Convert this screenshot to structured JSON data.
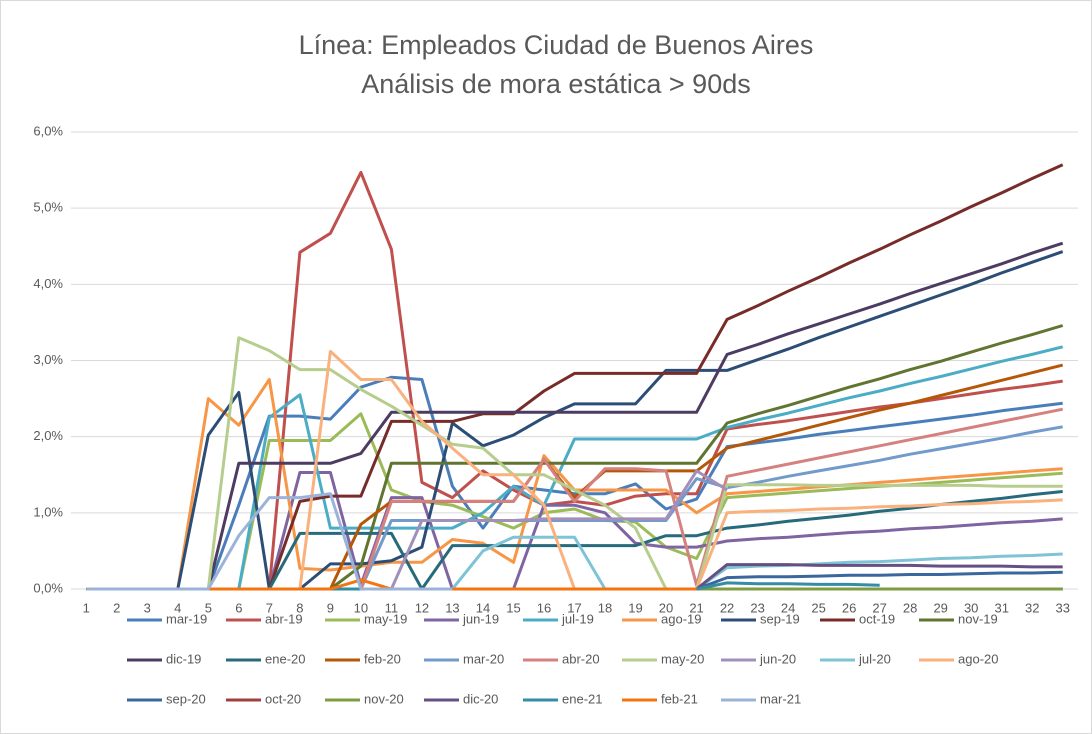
{
  "chart_data": {
    "type": "line",
    "title": "Línea:  Empleados Ciudad de Buenos Aires",
    "subtitle": "Análisis de mora estática  > 90ds",
    "categories": [
      1,
      2,
      3,
      4,
      5,
      6,
      7,
      8,
      9,
      10,
      11,
      12,
      13,
      14,
      15,
      16,
      17,
      18,
      19,
      20,
      21,
      22,
      23,
      24,
      25,
      26,
      27,
      28,
      29,
      30,
      31,
      32,
      33
    ],
    "ylim": [
      0,
      6
    ],
    "yticks": [
      {
        "value": 0,
        "label": "0,0%"
      },
      {
        "value": 1,
        "label": "1,0%"
      },
      {
        "value": 2,
        "label": "2,0%"
      },
      {
        "value": 3,
        "label": "3,0%"
      },
      {
        "value": 4,
        "label": "4,0%"
      },
      {
        "value": 5,
        "label": "5,0%"
      },
      {
        "value": 6,
        "label": "6,0%"
      }
    ],
    "grid": true,
    "legend": "bottom",
    "series": [
      {
        "name": "mar-19",
        "color": "#4a7ebb",
        "values": [
          0,
          0,
          0,
          0,
          0,
          1.1,
          2.27,
          2.27,
          2.23,
          2.65,
          2.78,
          2.75,
          1.35,
          0.8,
          1.35,
          1.3,
          1.25,
          1.25,
          1.38,
          1.05,
          1.18,
          1.87,
          1.92,
          1.97,
          2.03,
          2.08,
          2.13,
          2.18,
          2.23,
          2.28,
          2.34,
          2.39,
          2.44
        ]
      },
      {
        "name": "abr-19",
        "color": "#c0504d",
        "values": [
          0,
          0,
          0,
          0,
          0,
          0,
          0,
          4.42,
          4.67,
          5.47,
          4.46,
          1.4,
          1.2,
          1.55,
          1.3,
          1.1,
          1.15,
          1.1,
          1.22,
          1.25,
          1.25,
          2.1,
          2.16,
          2.21,
          2.27,
          2.33,
          2.39,
          2.44,
          2.5,
          2.56,
          2.62,
          2.67,
          2.73
        ]
      },
      {
        "name": "may-19",
        "color": "#9bbb59",
        "values": [
          0,
          0,
          0,
          0,
          0,
          0,
          1.95,
          1.95,
          1.95,
          2.3,
          1.3,
          1.15,
          1.1,
          0.95,
          0.8,
          1.0,
          1.05,
          0.9,
          0.88,
          0.55,
          0.4,
          1.2,
          1.23,
          1.26,
          1.29,
          1.32,
          1.35,
          1.37,
          1.4,
          1.43,
          1.46,
          1.49,
          1.52
        ]
      },
      {
        "name": "jun-19",
        "color": "#8064a2",
        "values": [
          0,
          0,
          0,
          0,
          0,
          0,
          0,
          1.53,
          1.53,
          0.05,
          1.2,
          1.2,
          0,
          0,
          0,
          1.1,
          1.1,
          1.0,
          0.6,
          0.55,
          0.55,
          0.63,
          0.66,
          0.68,
          0.71,
          0.74,
          0.76,
          0.79,
          0.81,
          0.84,
          0.87,
          0.89,
          0.92
        ]
      },
      {
        "name": "jul-19",
        "color": "#4bacc6",
        "values": [
          0,
          0,
          0,
          0,
          0,
          0,
          2.25,
          2.55,
          0.8,
          0.8,
          0.8,
          0.8,
          0.8,
          1.0,
          1.35,
          1.1,
          1.97,
          1.97,
          1.97,
          1.97,
          1.97,
          2.12,
          2.22,
          2.31,
          2.41,
          2.51,
          2.6,
          2.7,
          2.79,
          2.89,
          2.99,
          3.08,
          3.18
        ]
      },
      {
        "name": "ago-19",
        "color": "#f79646",
        "values": [
          0,
          0,
          0,
          0,
          2.5,
          2.15,
          2.75,
          0.27,
          0.25,
          0.3,
          0.35,
          0.35,
          0.65,
          0.6,
          0.35,
          1.75,
          1.3,
          1.3,
          1.3,
          1.3,
          1.0,
          1.25,
          1.28,
          1.31,
          1.34,
          1.37,
          1.4,
          1.43,
          1.46,
          1.49,
          1.52,
          1.55,
          1.58
        ]
      },
      {
        "name": "sep-19",
        "color": "#2c4d75",
        "values": [
          0,
          0,
          0,
          0,
          2.02,
          2.58,
          0,
          0,
          0.33,
          0.33,
          0.37,
          0.55,
          2.18,
          1.88,
          2.02,
          2.25,
          2.43,
          2.43,
          2.43,
          2.87,
          2.87,
          2.87,
          3.01,
          3.15,
          3.3,
          3.44,
          3.58,
          3.72,
          3.86,
          4.0,
          4.15,
          4.29,
          4.43
        ]
      },
      {
        "name": "oct-19",
        "color": "#772c2a",
        "values": [
          0,
          0,
          0,
          0,
          0,
          0,
          0,
          1.15,
          1.22,
          1.22,
          2.2,
          2.2,
          2.2,
          2.3,
          2.3,
          2.6,
          2.83,
          2.83,
          2.83,
          2.83,
          2.83,
          3.54,
          3.72,
          3.91,
          4.09,
          4.28,
          4.46,
          4.65,
          4.83,
          5.02,
          5.2,
          5.39,
          5.57
        ]
      },
      {
        "name": "nov-19",
        "color": "#5f7530",
        "values": [
          0,
          0,
          0,
          0,
          0,
          0,
          0,
          0,
          0,
          0.3,
          1.65,
          1.65,
          1.65,
          1.65,
          1.65,
          1.65,
          1.65,
          1.65,
          1.65,
          1.65,
          1.65,
          2.18,
          2.3,
          2.41,
          2.53,
          2.65,
          2.76,
          2.88,
          2.99,
          3.11,
          3.23,
          3.34,
          3.46
        ]
      },
      {
        "name": "dic-19",
        "color": "#4d3b62",
        "values": [
          0,
          0,
          0,
          0,
          0,
          1.65,
          1.65,
          1.65,
          1.65,
          1.78,
          2.32,
          2.32,
          2.32,
          2.32,
          2.32,
          2.32,
          2.32,
          2.32,
          2.32,
          2.32,
          2.32,
          3.08,
          3.21,
          3.35,
          3.48,
          3.61,
          3.74,
          3.88,
          4.01,
          4.14,
          4.27,
          4.41,
          4.54
        ]
      },
      {
        "name": "ene-20",
        "color": "#276a7c",
        "values": [
          0,
          0,
          0,
          0,
          0,
          0,
          0,
          0.73,
          0.73,
          0.73,
          0.73,
          0,
          0.57,
          0.57,
          0.57,
          0.57,
          0.57,
          0.57,
          0.57,
          0.7,
          0.7,
          0.8,
          0.84,
          0.89,
          0.93,
          0.97,
          1.02,
          1.06,
          1.11,
          1.15,
          1.19,
          1.24,
          1.28
        ]
      },
      {
        "name": "feb-20",
        "color": "#b65708",
        "values": [
          0,
          0,
          0,
          0,
          0,
          0,
          0,
          0,
          0,
          0.85,
          1.15,
          1.15,
          1.15,
          1.15,
          1.15,
          1.7,
          1.2,
          1.55,
          1.55,
          1.55,
          1.55,
          1.85,
          1.95,
          2.05,
          2.15,
          2.25,
          2.35,
          2.44,
          2.54,
          2.64,
          2.74,
          2.84,
          2.94
        ]
      },
      {
        "name": "mar-20",
        "color": "#729aca",
        "values": [
          0,
          0,
          0,
          0,
          0,
          0,
          0,
          0,
          0,
          0,
          0.9,
          0.9,
          0.9,
          0.9,
          0.9,
          0.9,
          0.9,
          0.9,
          0.9,
          0.9,
          1.45,
          1.33,
          1.4,
          1.48,
          1.55,
          1.62,
          1.69,
          1.77,
          1.84,
          1.91,
          1.98,
          2.06,
          2.13
        ]
      },
      {
        "name": "abr-20",
        "color": "#d4817f",
        "values": [
          0,
          0,
          0,
          0,
          0,
          0,
          0,
          0,
          0,
          0,
          1.15,
          1.15,
          1.15,
          1.15,
          1.15,
          1.7,
          1.15,
          1.58,
          1.58,
          1.55,
          0.05,
          1.48,
          1.56,
          1.64,
          1.72,
          1.8,
          1.88,
          1.96,
          2.04,
          2.12,
          2.2,
          2.28,
          2.36
        ]
      },
      {
        "name": "may-20",
        "color": "#b7cd8e",
        "values": [
          0,
          0,
          0,
          0,
          0,
          3.3,
          3.13,
          2.88,
          2.88,
          2.62,
          2.4,
          2.15,
          1.9,
          1.85,
          1.5,
          1.5,
          1.3,
          1.1,
          0.8,
          0,
          0,
          1.37,
          1.37,
          1.37,
          1.36,
          1.36,
          1.36,
          1.36,
          1.36,
          1.36,
          1.35,
          1.35,
          1.35
        ]
      },
      {
        "name": "jun-20",
        "color": "#a28fba",
        "values": [
          0,
          0,
          0,
          0,
          0,
          0,
          0,
          0,
          0,
          0,
          0,
          0.9,
          0.9,
          0.9,
          0.9,
          0.92,
          0.92,
          0.92,
          0.92,
          0.92,
          1.55,
          1.3,
          null,
          null,
          null,
          null,
          null,
          null,
          null,
          null,
          null,
          null,
          null
        ]
      },
      {
        "name": "jul-20",
        "color": "#7fc3d7",
        "values": [
          0,
          0,
          0,
          0,
          0,
          0,
          0,
          0,
          0,
          0,
          0,
          0,
          0,
          0.5,
          0.68,
          0.68,
          0.68,
          0,
          0,
          0,
          0,
          0.28,
          0.3,
          0.31,
          0.33,
          0.35,
          0.36,
          0.38,
          0.4,
          0.41,
          0.43,
          0.44,
          0.46
        ]
      },
      {
        "name": "ago-20",
        "color": "#f9b27e",
        "values": [
          0,
          0,
          0,
          0,
          0,
          0,
          0,
          0,
          3.12,
          2.75,
          2.75,
          2.2,
          1.85,
          1.5,
          1.5,
          1.1,
          0,
          0,
          0,
          0,
          0,
          1.0,
          1.02,
          1.03,
          1.05,
          1.06,
          1.08,
          1.09,
          1.11,
          1.12,
          1.14,
          1.15,
          1.17
        ]
      },
      {
        "name": "sep-20",
        "color": "#3a679c",
        "values": [
          0,
          0,
          0,
          0,
          0,
          0,
          0,
          0,
          0,
          0,
          0,
          0,
          0,
          0,
          0,
          0,
          0,
          0,
          0,
          0,
          0,
          0.15,
          0.16,
          0.16,
          0.17,
          0.18,
          0.18,
          0.19,
          0.19,
          0.2,
          0.21,
          0.21,
          0.22
        ]
      },
      {
        "name": "oct-20",
        "color": "#9f403d",
        "values": [
          0,
          0,
          0,
          0,
          0,
          0,
          0,
          0,
          0,
          0,
          0,
          0,
          0,
          0,
          0,
          0,
          0,
          0,
          0,
          0,
          0,
          0,
          0,
          0,
          0,
          0,
          0,
          0,
          0,
          0,
          0,
          0,
          0
        ]
      },
      {
        "name": "nov-20",
        "color": "#7f9c40",
        "values": [
          0,
          0,
          0,
          0,
          0,
          0,
          0,
          0,
          0,
          0,
          0,
          0,
          0,
          0,
          0,
          0,
          0,
          0,
          0,
          0,
          0,
          0,
          0,
          0,
          0,
          0,
          0,
          0,
          0,
          0,
          0,
          0,
          0
        ]
      },
      {
        "name": "dic-20",
        "color": "#664f82",
        "values": [
          0,
          0,
          0,
          0,
          0,
          0,
          0,
          0,
          0,
          0,
          0,
          0,
          0,
          0,
          0,
          0,
          0,
          0,
          0,
          0,
          0,
          0.32,
          0.32,
          0.32,
          0.31,
          0.31,
          0.31,
          0.31,
          0.3,
          0.3,
          0.3,
          0.29,
          0.29
        ]
      },
      {
        "name": "ene-21",
        "color": "#358ca5",
        "values": [
          0,
          0,
          0,
          0,
          0,
          0,
          0,
          0,
          0,
          0,
          0,
          0,
          0,
          0,
          0,
          0,
          0,
          0,
          0,
          0,
          0,
          0.08,
          0.07,
          0.07,
          0.06,
          0.06,
          0.05,
          null,
          null,
          null,
          null,
          null,
          null
        ]
      },
      {
        "name": "feb-21",
        "color": "#f47510",
        "values": [
          0,
          0,
          0,
          0,
          0,
          0,
          0,
          0,
          0,
          0.12,
          0,
          0,
          0,
          0,
          0,
          0,
          0,
          0,
          0,
          0,
          0,
          null,
          null,
          null,
          null,
          null,
          null,
          null,
          null,
          null,
          null,
          null,
          null
        ]
      },
      {
        "name": "mar-21",
        "color": "#9cb3d9",
        "values": [
          0,
          0,
          0,
          0,
          0,
          0.7,
          1.2,
          1.2,
          1.25,
          0,
          0,
          0,
          0,
          null,
          null,
          null,
          null,
          null,
          null,
          null,
          null,
          null,
          null,
          null,
          null,
          null,
          null,
          null,
          null,
          null,
          null,
          null,
          null
        ]
      }
    ]
  }
}
